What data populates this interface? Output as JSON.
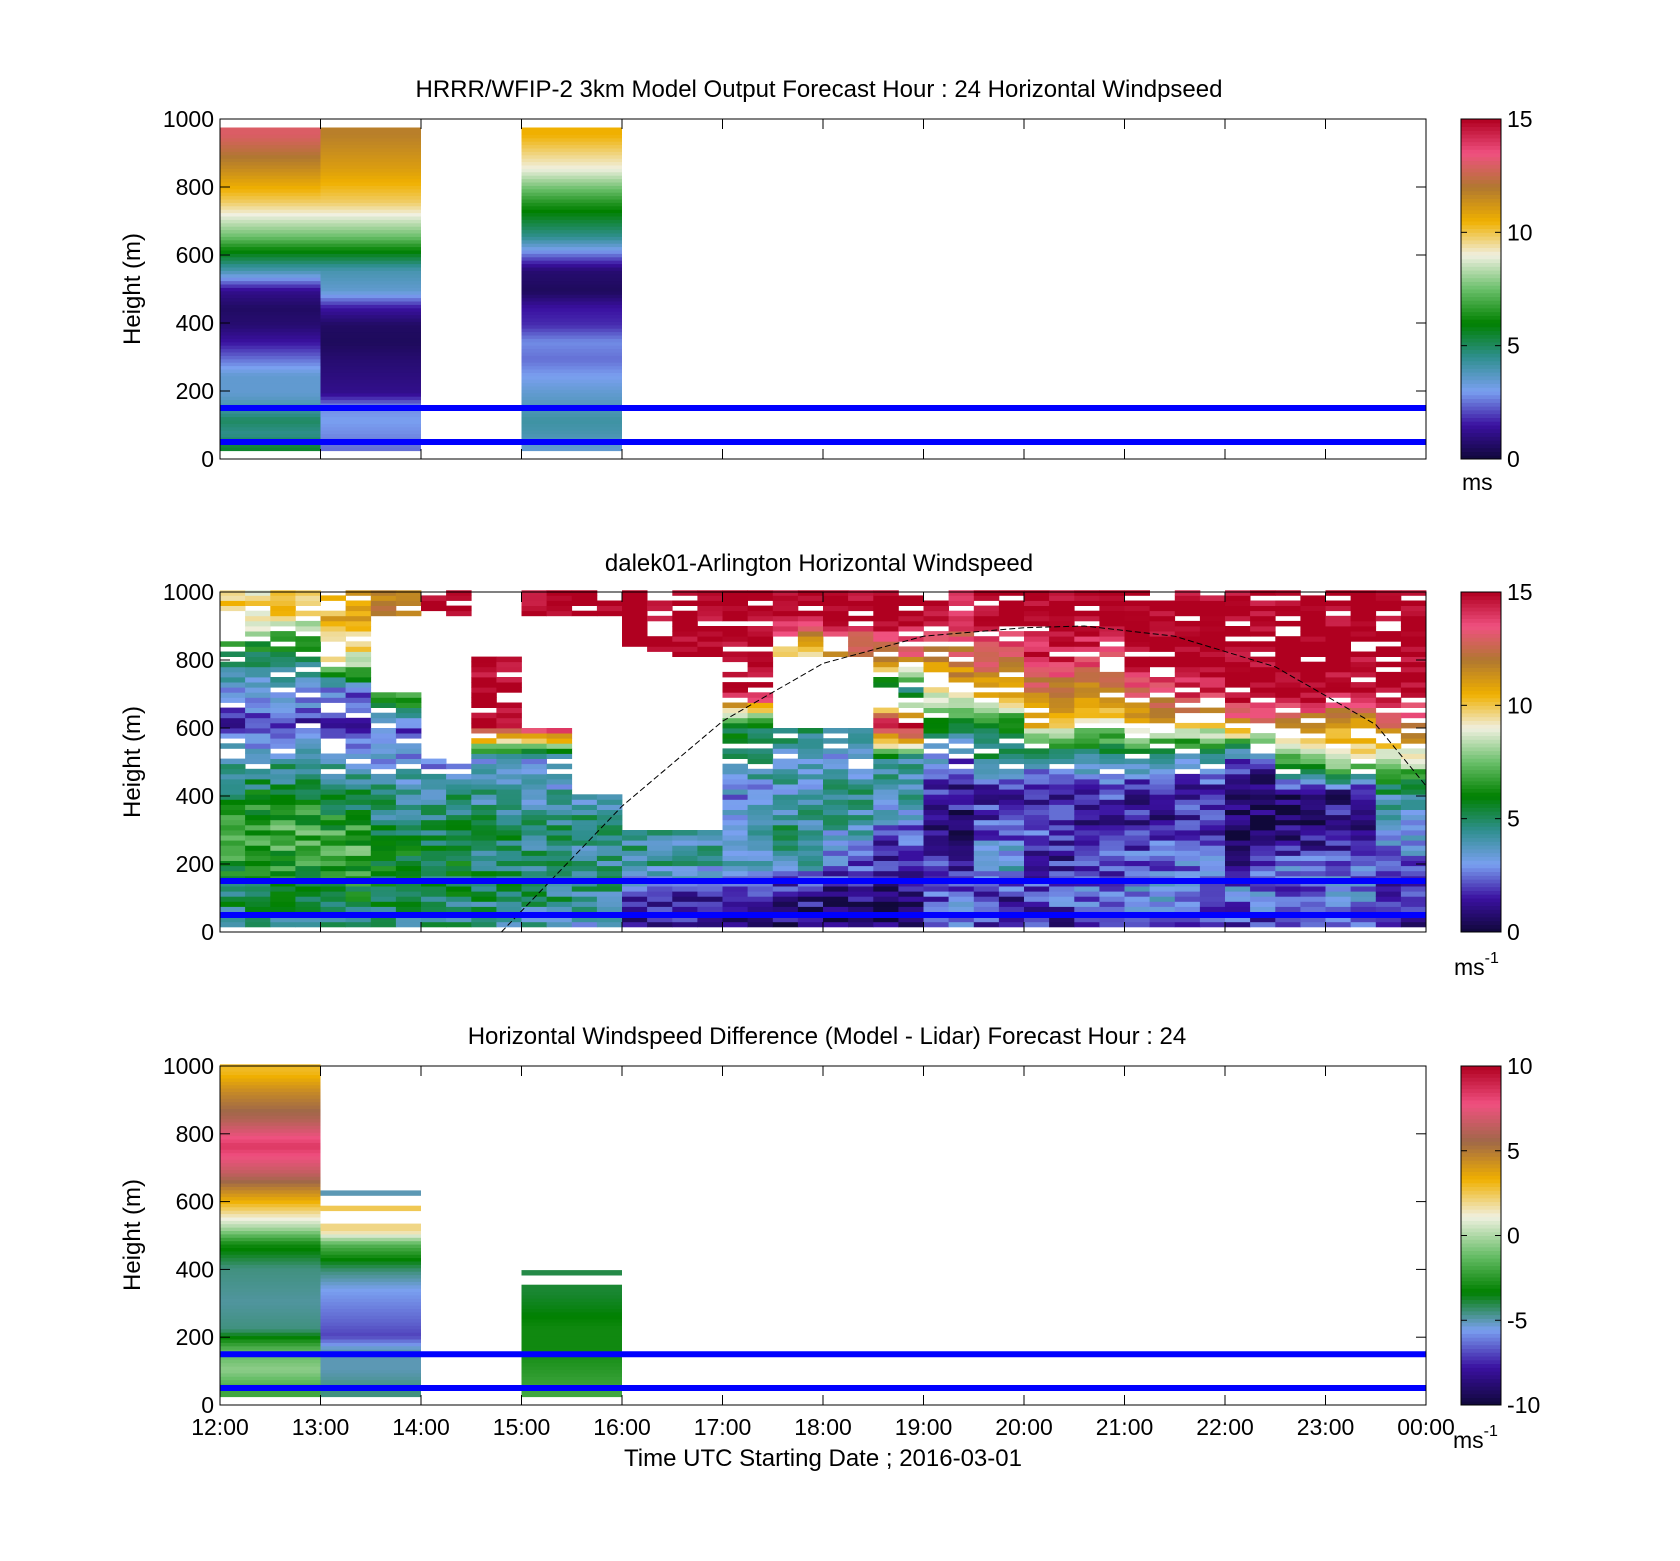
{
  "colors": {
    "reference_line": "#0000ff",
    "sun_curve": "#000000",
    "speed_colormap": [
      "#10083a",
      "#3a10a0",
      "#7aa0f0",
      "#2f8f8f",
      "#008000",
      "#6abf6a",
      "#f0f0e0",
      "#f0b000",
      "#b07830",
      "#f05080",
      "#b00020"
    ],
    "diff_colormap": [
      "#10083a",
      "#3a10a0",
      "#7aa0f0",
      "#008000",
      "#6abf6a",
      "#f0f0e0",
      "#f0b000",
      "#a06848",
      "#f05080",
      "#b00020"
    ]
  },
  "chart_data": [
    {
      "type": "heatmap",
      "title": "HRRR/WFIP-2 3km Model Output   Forecast Hour : 24 Horizontal Windpseed",
      "ylabel": "Height (m)",
      "ylim": [
        0,
        1000
      ],
      "yticks": [
        "0",
        "200",
        "400",
        "600",
        "800",
        "1000"
      ],
      "xlim_hours": [
        12,
        24
      ],
      "colorbar": {
        "ticks": [
          "0",
          "5",
          "10",
          "15"
        ],
        "range": [
          0,
          15
        ],
        "unit": "ms"
      },
      "reference_heights_m": [
        50,
        150
      ],
      "columns": [
        {
          "start": "12:00",
          "heights": [
            30,
            70,
            110,
            150,
            190,
            240,
            290,
            340,
            390,
            440,
            490,
            550,
            650,
            750,
            850,
            950
          ],
          "values": [
            5.5,
            4.5,
            5.0,
            4.0,
            3.5,
            3.5,
            2.5,
            1.5,
            0.8,
            0.6,
            1.2,
            4.0,
            7.5,
            9.8,
            11.5,
            13.0
          ]
        },
        {
          "start": "13:00",
          "heights": [
            30,
            70,
            110,
            150,
            190,
            240,
            290,
            340,
            390,
            440,
            490,
            550,
            650,
            750,
            850,
            950
          ],
          "values": [
            2.5,
            2.8,
            3.0,
            2.8,
            1.2,
            1.0,
            0.8,
            0.5,
            0.6,
            1.5,
            3.5,
            4.0,
            7.5,
            9.8,
            11.0,
            11.8
          ]
        },
        {
          "start": "15:00",
          "heights": [
            30,
            70,
            110,
            150,
            190,
            240,
            290,
            340,
            390,
            440,
            490,
            550,
            650,
            750,
            850,
            950
          ],
          "values": [
            3.5,
            4.0,
            4.2,
            3.8,
            3.5,
            3.0,
            2.5,
            2.8,
            1.8,
            1.5,
            0.5,
            0.8,
            4.5,
            6.5,
            9.0,
            10.5
          ]
        }
      ]
    },
    {
      "type": "heatmap",
      "title": "dalek01-Arlington  Horizontal Windspeed",
      "ylabel": "Height (m)",
      "ylim": [
        0,
        1000
      ],
      "yticks": [
        "0",
        "200",
        "400",
        "600",
        "800",
        "1000"
      ],
      "xlim_hours": [
        12,
        24
      ],
      "colorbar": {
        "ticks": [
          "0",
          "5",
          "10",
          "15"
        ],
        "range": [
          0,
          15
        ],
        "unit": "ms",
        "unit_sup": "-1"
      },
      "reference_heights_m": [
        50,
        150
      ],
      "sun_curve": {
        "x_hours": [
          14.8,
          16.0,
          17.0,
          18.0,
          19.0,
          20.0,
          20.6,
          21.5,
          22.5,
          23.5,
          24.0
        ],
        "heights": [
          0,
          370,
          620,
          790,
          870,
          895,
          900,
          870,
          780,
          610,
          430
        ]
      },
      "profiles": [
        {
          "start": "12:00",
          "hours": 1.0,
          "heights": [
            25,
            100,
            200,
            300,
            400,
            500,
            600,
            700,
            800,
            920
          ],
          "values": [
            4.5,
            5.2,
            6.5,
            6.8,
            5.5,
            4.0,
            1.5,
            3.0,
            4.5,
            9.5
          ]
        },
        {
          "start": "13:00",
          "hours": 0.5,
          "heights": [
            25,
            100,
            200,
            300,
            400,
            500,
            600,
            700,
            800,
            920
          ],
          "values": [
            5.0,
            5.5,
            7.0,
            6.5,
            5.0,
            3.5,
            1.0,
            2.5,
            9.0,
            10.5
          ]
        },
        {
          "start": "13:30",
          "hours": 0.5,
          "heights": [
            25,
            100,
            200,
            300,
            400,
            500,
            600,
            700,
            800,
            920
          ],
          "values": [
            4.8,
            5.5,
            6.0,
            5.0,
            4.5,
            3.0,
            2.0,
            8.0,
            null,
            12.0
          ]
        },
        {
          "start": "14:00",
          "hours": 0.5,
          "heights": [
            25,
            100,
            200,
            300,
            400,
            500,
            600,
            700,
            800,
            920
          ],
          "values": [
            4.5,
            5.2,
            5.5,
            5.0,
            4.5,
            2.5,
            null,
            15.0,
            null,
            15.0
          ]
        },
        {
          "start": "14:30",
          "hours": 0.5,
          "heights": [
            25,
            100,
            200,
            300,
            400,
            500,
            600,
            700,
            800,
            920
          ],
          "values": [
            4.2,
            5.0,
            5.0,
            4.8,
            4.2,
            3.0,
            15.0,
            15.0,
            15.0,
            null
          ]
        },
        {
          "start": "15:00",
          "hours": 0.5,
          "heights": [
            25,
            100,
            200,
            300,
            400,
            500,
            600,
            700,
            800,
            920
          ],
          "values": [
            4.0,
            4.8,
            4.8,
            4.5,
            4.0,
            2.8,
            15.0,
            null,
            null,
            15.0
          ]
        },
        {
          "start": "15:30",
          "hours": 0.5,
          "heights": [
            25,
            100,
            200,
            300,
            400,
            500,
            600,
            700,
            800,
            920
          ],
          "values": [
            3.5,
            4.5,
            4.5,
            4.5,
            4.0,
            null,
            15.0,
            null,
            null,
            15.0
          ]
        },
        {
          "start": "16:00",
          "hours": 0.5,
          "heights": [
            25,
            100,
            200,
            300,
            400,
            500,
            600,
            700,
            800,
            920
          ],
          "values": [
            1.5,
            2.0,
            4.5,
            4.0,
            null,
            null,
            15.0,
            null,
            15.0,
            15.0
          ]
        },
        {
          "start": "16:30",
          "hours": 0.5,
          "heights": [
            25,
            100,
            200,
            300,
            400,
            500,
            600,
            700,
            800,
            920
          ],
          "values": [
            1.2,
            1.8,
            4.2,
            4.0,
            null,
            null,
            4.5,
            null,
            15.0,
            15.0
          ]
        },
        {
          "start": "17:00",
          "hours": 0.5,
          "heights": [
            25,
            100,
            200,
            300,
            400,
            500,
            600,
            700,
            800,
            920
          ],
          "values": [
            1.0,
            1.5,
            4.0,
            4.0,
            3.0,
            4.5,
            5.5,
            15.0,
            15.0,
            15.0
          ]
        },
        {
          "start": "17:30",
          "hours": 0.5,
          "heights": [
            25,
            100,
            200,
            300,
            400,
            500,
            600,
            700,
            800,
            920
          ],
          "values": [
            0.8,
            1.2,
            3.8,
            4.5,
            4.0,
            3.5,
            5.0,
            null,
            9.0,
            15.0
          ]
        },
        {
          "start": "18:00",
          "hours": 0.5,
          "heights": [
            25,
            100,
            200,
            300,
            400,
            500,
            600,
            700,
            800,
            920
          ],
          "values": [
            0.8,
            1.0,
            2.5,
            4.0,
            4.5,
            3.0,
            4.5,
            null,
            11.0,
            15.0
          ]
        },
        {
          "start": "18:30",
          "hours": 0.5,
          "heights": [
            25,
            100,
            200,
            300,
            400,
            500,
            600,
            700,
            800,
            920
          ],
          "values": [
            0.6,
            0.8,
            1.5,
            2.5,
            4.5,
            4.0,
            15.0,
            4.0,
            12.0,
            15.0
          ]
        },
        {
          "start": "19:00",
          "hours": 0.25,
          "heights": [
            25,
            100,
            200,
            300,
            400,
            500,
            600,
            700,
            800,
            920
          ],
          "values": [
            1.5,
            2.0,
            1.5,
            1.0,
            1.8,
            3.0,
            6.0,
            9.0,
            12.0,
            15.0
          ]
        },
        {
          "start": "19:15",
          "hours": 0.25,
          "heights": [
            25,
            100,
            200,
            300,
            400,
            500,
            600,
            700,
            800,
            920
          ],
          "values": [
            2.5,
            3.0,
            1.0,
            0.8,
            1.5,
            2.0,
            5.0,
            10.0,
            12.0,
            14.0
          ]
        },
        {
          "start": "19:30",
          "hours": 0.5,
          "heights": [
            25,
            100,
            200,
            300,
            400,
            500,
            600,
            700,
            800,
            920
          ],
          "values": [
            2.0,
            1.5,
            4.0,
            2.0,
            1.5,
            4.5,
            5.5,
            10.5,
            12.5,
            15.0
          ]
        },
        {
          "start": "20:00",
          "hours": 0.5,
          "heights": [
            25,
            100,
            200,
            300,
            400,
            500,
            600,
            700,
            800,
            920
          ],
          "values": [
            1.5,
            2.5,
            1.5,
            2.0,
            1.2,
            3.5,
            10.0,
            12.0,
            14.0,
            15.0
          ]
        },
        {
          "start": "20:30",
          "hours": 0.5,
          "heights": [
            25,
            100,
            200,
            300,
            400,
            500,
            600,
            700,
            800,
            920
          ],
          "values": [
            1.8,
            2.8,
            2.0,
            1.5,
            1.8,
            4.0,
            8.5,
            11.5,
            13.5,
            15.0
          ]
        },
        {
          "start": "21:00",
          "hours": 0.5,
          "heights": [
            25,
            100,
            200,
            300,
            400,
            500,
            600,
            700,
            800,
            920
          ],
          "values": [
            2.0,
            3.0,
            2.5,
            1.5,
            1.2,
            4.0,
            10.0,
            13.0,
            15.0,
            15.0
          ]
        },
        {
          "start": "21:30",
          "hours": 0.5,
          "heights": [
            25,
            100,
            200,
            300,
            400,
            500,
            600,
            700,
            800,
            920
          ],
          "values": [
            1.5,
            2.5,
            2.5,
            1.8,
            1.5,
            3.5,
            9.5,
            14.0,
            15.0,
            15.0
          ]
        },
        {
          "start": "22:00",
          "hours": 0.5,
          "heights": [
            25,
            100,
            200,
            300,
            400,
            500,
            600,
            700,
            800,
            920
          ],
          "values": [
            1.8,
            3.0,
            1.5,
            0.6,
            0.5,
            2.0,
            11.5,
            15.0,
            15.0,
            15.0
          ]
        },
        {
          "start": "22:30",
          "hours": 0.5,
          "heights": [
            25,
            100,
            200,
            300,
            400,
            500,
            600,
            700,
            800,
            920
          ],
          "values": [
            2.0,
            2.5,
            2.5,
            0.8,
            0.6,
            7.0,
            11.0,
            15.0,
            15.0,
            15.0
          ]
        },
        {
          "start": "23:00",
          "hours": 0.5,
          "heights": [
            25,
            100,
            200,
            300,
            400,
            500,
            600,
            700,
            800,
            920
          ],
          "values": [
            2.5,
            3.0,
            2.0,
            1.5,
            1.0,
            9.0,
            10.5,
            14.5,
            15.0,
            15.0
          ]
        },
        {
          "start": "23:30",
          "hours": 0.5,
          "heights": [
            25,
            100,
            200,
            300,
            400,
            500,
            600,
            700,
            800,
            920
          ],
          "values": [
            1.0,
            1.5,
            2.5,
            3.5,
            4.5,
            8.5,
            12.0,
            15.0,
            15.0,
            15.0
          ]
        }
      ]
    },
    {
      "type": "heatmap",
      "title": "Horizontal Windspeed Difference (Model - Lidar) Forecast Hour : 24",
      "xlabel": "Time UTC  Starting Date ; 2016-03-01",
      "ylabel": "Height (m)",
      "ylim": [
        0,
        1000
      ],
      "yticks": [
        "0",
        "200",
        "400",
        "600",
        "800",
        "1000"
      ],
      "xticks": [
        "12:00",
        "13:00",
        "14:00",
        "15:00",
        "16:00",
        "17:00",
        "18:00",
        "19:00",
        "20:00",
        "21:00",
        "22:00",
        "23:00",
        "00:00"
      ],
      "xlim_hours": [
        12,
        24
      ],
      "colorbar": {
        "ticks": [
          "-10",
          "-5",
          "0",
          "5",
          "10"
        ],
        "range": [
          -10,
          10
        ],
        "unit": "ms",
        "unit_sup": "-1"
      },
      "reference_heights_m": [
        50,
        150
      ],
      "columns": [
        {
          "start": "12:00",
          "heights": [
            40,
            100,
            160,
            220,
            300,
            400,
            470,
            520,
            600,
            680,
            760,
            840,
            920,
            980
          ],
          "values": [
            -2.0,
            -0.5,
            -1.5,
            -4.5,
            -4.8,
            -4.5,
            -3.0,
            0.0,
            3.5,
            6.5,
            8.5,
            6.0,
            4.5,
            3.0
          ]
        },
        {
          "start": "13:00",
          "heights": [
            40,
            100,
            160,
            200,
            240,
            290,
            340,
            390,
            420,
            470,
            510
          ],
          "values": [
            -4.5,
            -5.0,
            -5.0,
            -7.0,
            -6.5,
            -6.0,
            -5.5,
            -4.5,
            -3.5,
            -1.5,
            2.0
          ]
        },
        {
          "start": "15:00",
          "heights": [
            40,
            100,
            160,
            220,
            280,
            330
          ],
          "values": [
            -2.0,
            -2.5,
            -3.0,
            -3.0,
            -3.5,
            -3.8
          ]
        }
      ],
      "isolated_bands": [
        {
          "start": "13:00",
          "height": 580,
          "value": 2.5
        },
        {
          "start": "13:00",
          "height": 625,
          "value": -5.0
        },
        {
          "start": "15:00",
          "height": 390,
          "value": -4.0
        }
      ]
    }
  ]
}
